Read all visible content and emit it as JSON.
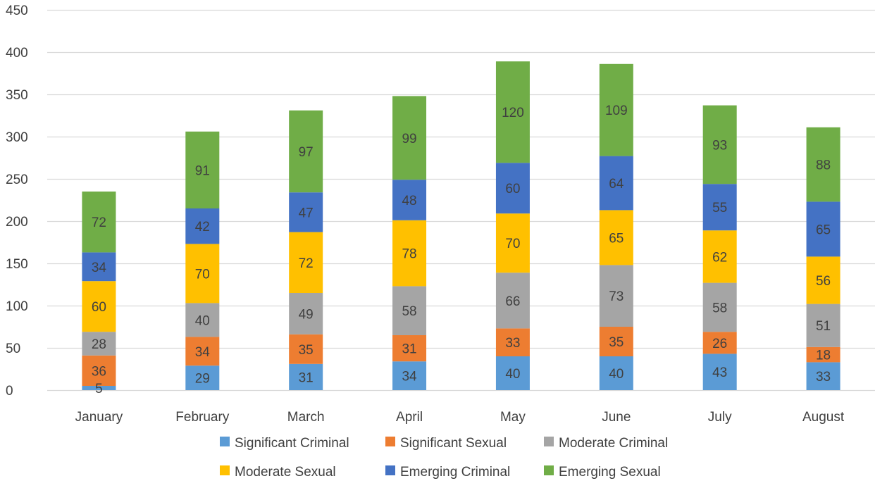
{
  "chart_data": {
    "type": "bar",
    "stacked": true,
    "title": "",
    "xlabel": "",
    "ylabel": "",
    "ylim": [
      0,
      450
    ],
    "y_ticks": [
      0,
      50,
      100,
      150,
      200,
      250,
      300,
      350,
      400,
      450
    ],
    "grid": true,
    "legend_position": "bottom",
    "categories": [
      "January",
      "February",
      "March",
      "April",
      "May",
      "June",
      "July",
      "August"
    ],
    "series": [
      {
        "name": "Significant Criminal",
        "color": "#5B9BD5",
        "values": [
          5,
          29,
          31,
          34,
          40,
          40,
          43,
          33
        ]
      },
      {
        "name": "Significant Sexual",
        "color": "#ED7D31",
        "values": [
          36,
          34,
          35,
          31,
          33,
          35,
          26,
          18
        ]
      },
      {
        "name": "Moderate Criminal",
        "color": "#A5A5A5",
        "values": [
          28,
          40,
          49,
          58,
          66,
          73,
          58,
          51
        ]
      },
      {
        "name": "Moderate Sexual",
        "color": "#FFC000",
        "values": [
          60,
          70,
          72,
          78,
          70,
          65,
          62,
          56
        ]
      },
      {
        "name": "Emerging Criminal",
        "color": "#4472C4",
        "values": [
          34,
          42,
          47,
          48,
          60,
          64,
          55,
          65
        ]
      },
      {
        "name": "Emerging Sexual",
        "color": "#70AD47",
        "values": [
          72,
          91,
          97,
          99,
          120,
          109,
          93,
          88
        ]
      }
    ]
  }
}
